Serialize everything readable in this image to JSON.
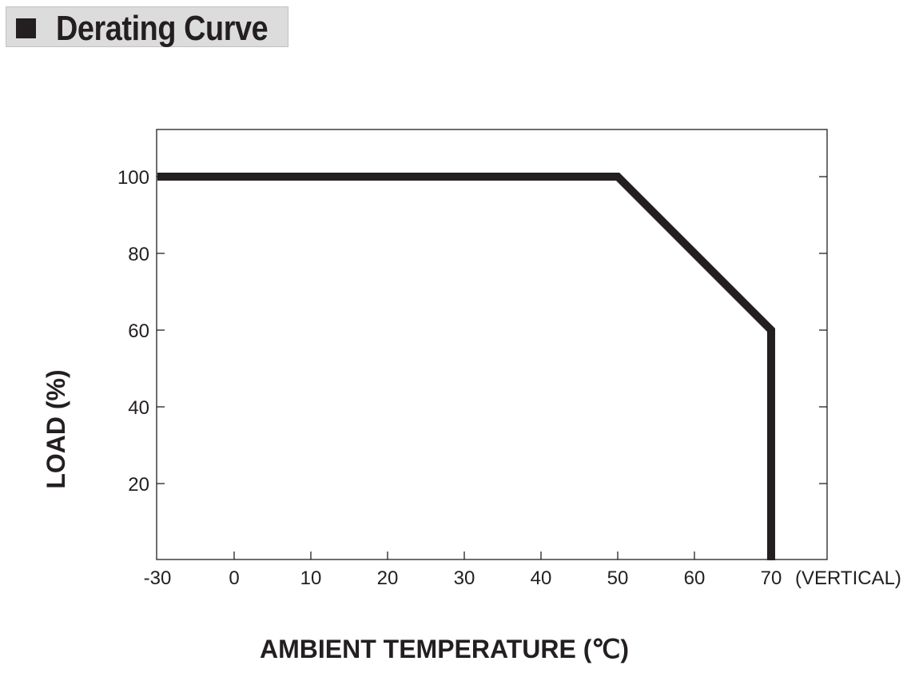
{
  "header": {
    "title": "Derating Curve"
  },
  "chart_data": {
    "type": "line",
    "xlabel": "AMBIENT TEMPERATURE (℃)",
    "ylabel": "LOAD (%)",
    "x_ticks": [
      "-30",
      "0",
      "10",
      "20",
      "30",
      "40",
      "50",
      "60",
      "70"
    ],
    "x_tick_values": [
      -30,
      0,
      10,
      20,
      30,
      40,
      50,
      60,
      70
    ],
    "x_annotation": "(VERTICAL)",
    "y_ticks": [
      "20",
      "40",
      "60",
      "80",
      "100"
    ],
    "y_tick_values": [
      20,
      40,
      60,
      80,
      100
    ],
    "ylim": [
      0,
      112
    ],
    "grid": false,
    "series": [
      {
        "points": [
          {
            "x": -30,
            "y": 100
          },
          {
            "x": 50,
            "y": 100
          },
          {
            "x": 70,
            "y": 60
          },
          {
            "x": 70,
            "y": 0
          }
        ]
      }
    ],
    "colors": {
      "line": "#231f20",
      "frame": "#231f20",
      "title_bg": "#dcdcdc"
    }
  }
}
